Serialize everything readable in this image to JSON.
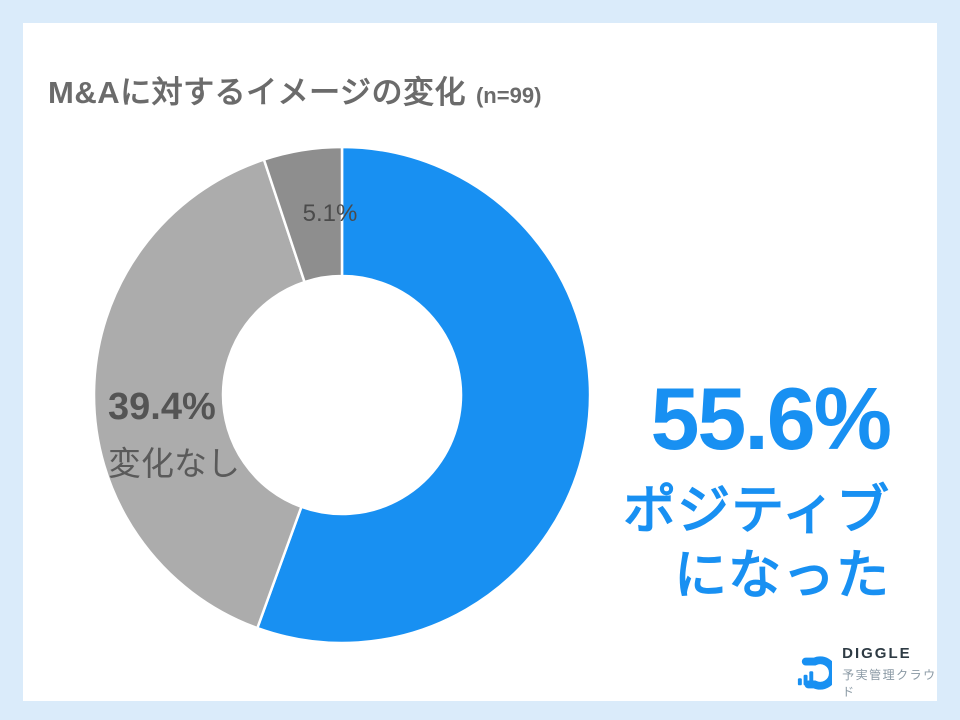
{
  "header": {
    "title": "M&Aに対するイメージの変化",
    "sample": "(n=99)"
  },
  "chart_data": {
    "type": "pie",
    "variant": "donut",
    "title": "M&Aに対するイメージの変化",
    "sample_size": "(n=99)",
    "unit": "%",
    "start_angle_deg": 0,
    "direction": "clockwise",
    "inner_radius_ratio": 0.48,
    "segments": [
      {
        "key": "positive",
        "label": "ポジティブになった",
        "value": 55.6,
        "color": "#1890F2"
      },
      {
        "key": "no_change",
        "label": "変化なし",
        "value": 39.4,
        "color": "#ACACAC"
      },
      {
        "key": "other",
        "label": "",
        "value": 5.1,
        "color": "#8E8E8E"
      }
    ]
  },
  "callouts": {
    "positive": {
      "percent": "55.6%",
      "label_line1": "ポジティブ",
      "label_line2": "になった"
    },
    "no_change": {
      "percent": "39.4%",
      "label": "変化なし"
    },
    "other": {
      "percent": "5.1%"
    }
  },
  "logo": {
    "name": "DIGGLE",
    "tagline": "予実管理クラウド"
  },
  "colors": {
    "background_frame": "#DAEBFA",
    "card": "#FFFFFF",
    "accent_blue": "#1890F2",
    "gray_segment": "#ACACAC",
    "dark_gray_segment": "#8E8E8E",
    "title_gray": "#6B6B6B",
    "label_dark_gray": "#4B4B4B",
    "logo_navy": "#2E3B44",
    "logo_tagline_gray": "#8A99A4"
  }
}
